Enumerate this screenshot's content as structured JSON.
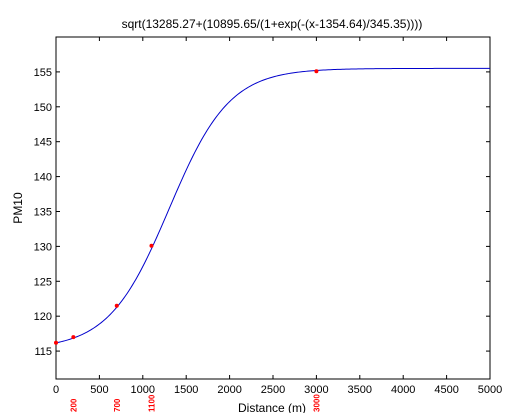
{
  "chart_data": {
    "type": "line",
    "title": "sqrt(13285.27+(10895.65/(1+exp(-(x-1354.64)/345.35))))",
    "xlabel": "Distance (m)",
    "ylabel": "PM10",
    "xlim": [
      0,
      5000
    ],
    "ylim": [
      111,
      160
    ],
    "xticks": [
      "0",
      "500",
      "1000",
      "1500",
      "2000",
      "2500",
      "3000",
      "3500",
      "4000",
      "4500",
      "5000"
    ],
    "yticks": [
      "115",
      "120",
      "125",
      "130",
      "135",
      "140",
      "145",
      "150",
      "155"
    ],
    "grid": false,
    "curve": {
      "color": "#0000cc",
      "model": {
        "a": 13285.27,
        "b": 10895.65,
        "x0": 1354.64,
        "s": 345.35
      }
    },
    "points": {
      "color": "#ff0000",
      "x": [
        0,
        200,
        700,
        1100,
        3000
      ],
      "y": [
        116.2,
        117.0,
        121.5,
        130.1,
        155.1
      ]
    },
    "point_labels": {
      "color": "#ff0000",
      "labels": [
        "200",
        "700",
        "1100",
        "3000"
      ],
      "x": [
        200,
        700,
        1100,
        3000
      ]
    }
  }
}
